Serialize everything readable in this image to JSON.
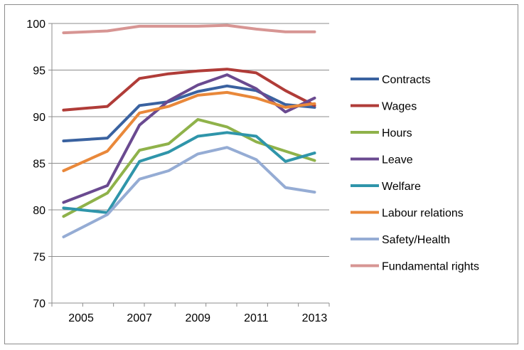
{
  "chart_data": {
    "type": "line",
    "title": "",
    "xlabel": "",
    "ylabel": "",
    "x": [
      2004.4,
      2005.9,
      2007,
      2008,
      2009,
      2010,
      2011,
      2012,
      2013
    ],
    "xticks": [
      2005,
      2007,
      2009,
      2011,
      2013
    ],
    "xlim": [
      2004,
      2013.5
    ],
    "ylim": [
      70,
      100
    ],
    "yticks": [
      70,
      75,
      80,
      85,
      90,
      95,
      100
    ],
    "grid": "horizontal",
    "legend": "right",
    "series": [
      {
        "name": "Contracts",
        "color": "#3a62a0",
        "values": [
          87.4,
          87.7,
          91.2,
          91.6,
          92.7,
          93.3,
          92.8,
          91.3,
          91.0
        ]
      },
      {
        "name": "Wages",
        "color": "#b03c38",
        "values": [
          90.7,
          91.1,
          94.1,
          94.6,
          94.9,
          95.1,
          94.7,
          92.8,
          91.2
        ]
      },
      {
        "name": "Hours",
        "color": "#8fb24a",
        "values": [
          79.3,
          81.8,
          86.4,
          87.1,
          89.7,
          88.9,
          87.3,
          86.3,
          85.3
        ]
      },
      {
        "name": "Leave",
        "color": "#6a4a90",
        "values": [
          80.8,
          82.6,
          89.1,
          91.7,
          93.4,
          94.5,
          93.0,
          90.5,
          92.0
        ]
      },
      {
        "name": "Welfare",
        "color": "#2f95aa",
        "values": [
          80.2,
          79.7,
          85.2,
          86.2,
          87.9,
          88.3,
          87.9,
          85.2,
          86.1
        ]
      },
      {
        "name": "Labour relations",
        "color": "#e9883a",
        "values": [
          84.2,
          86.3,
          90.4,
          91.1,
          92.3,
          92.6,
          92.0,
          91.0,
          91.4
        ]
      },
      {
        "name": "Safety/Health",
        "color": "#95acd4",
        "values": [
          77.1,
          79.5,
          83.3,
          84.2,
          86.0,
          86.7,
          85.4,
          82.4,
          81.9
        ]
      },
      {
        "name": "Fundamental rights",
        "color": "#d79593",
        "values": [
          99.0,
          99.2,
          99.7,
          99.7,
          99.7,
          99.8,
          99.4,
          99.1,
          99.1
        ]
      }
    ]
  }
}
